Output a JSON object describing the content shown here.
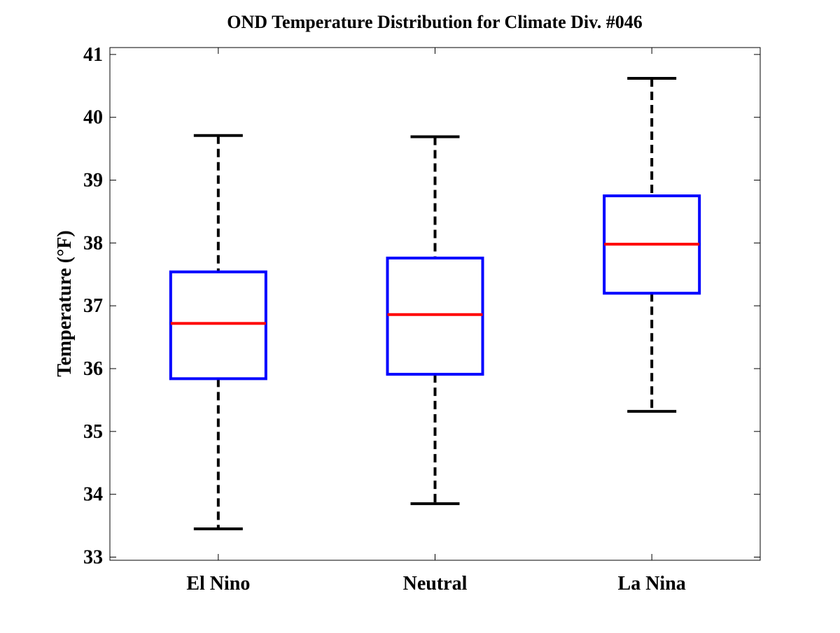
{
  "chart_data": {
    "type": "box",
    "title": "OND Temperature Distribution for Climate Div. #046",
    "xlabel": "",
    "ylabel": "Temperature (°F)",
    "ylim": [
      32.95,
      41.11
    ],
    "yticks": [
      33,
      34,
      35,
      36,
      37,
      38,
      39,
      40,
      41
    ],
    "categories": [
      "El Nino",
      "Neutral",
      "La Nina"
    ],
    "boxes": [
      {
        "name": "El Nino",
        "whisker_low": 33.45,
        "q1": 35.84,
        "median": 36.72,
        "q3": 37.54,
        "whisker_high": 39.71
      },
      {
        "name": "Neutral",
        "whisker_low": 33.85,
        "q1": 35.91,
        "median": 36.86,
        "q3": 37.76,
        "whisker_high": 39.69
      },
      {
        "name": "La Nina",
        "whisker_low": 35.32,
        "q1": 37.2,
        "median": 37.98,
        "q3": 38.75,
        "whisker_high": 40.62
      }
    ],
    "grid": false,
    "colors": {
      "box": "#0000ff",
      "median": "#ff0000",
      "whisker": "#000000"
    }
  }
}
